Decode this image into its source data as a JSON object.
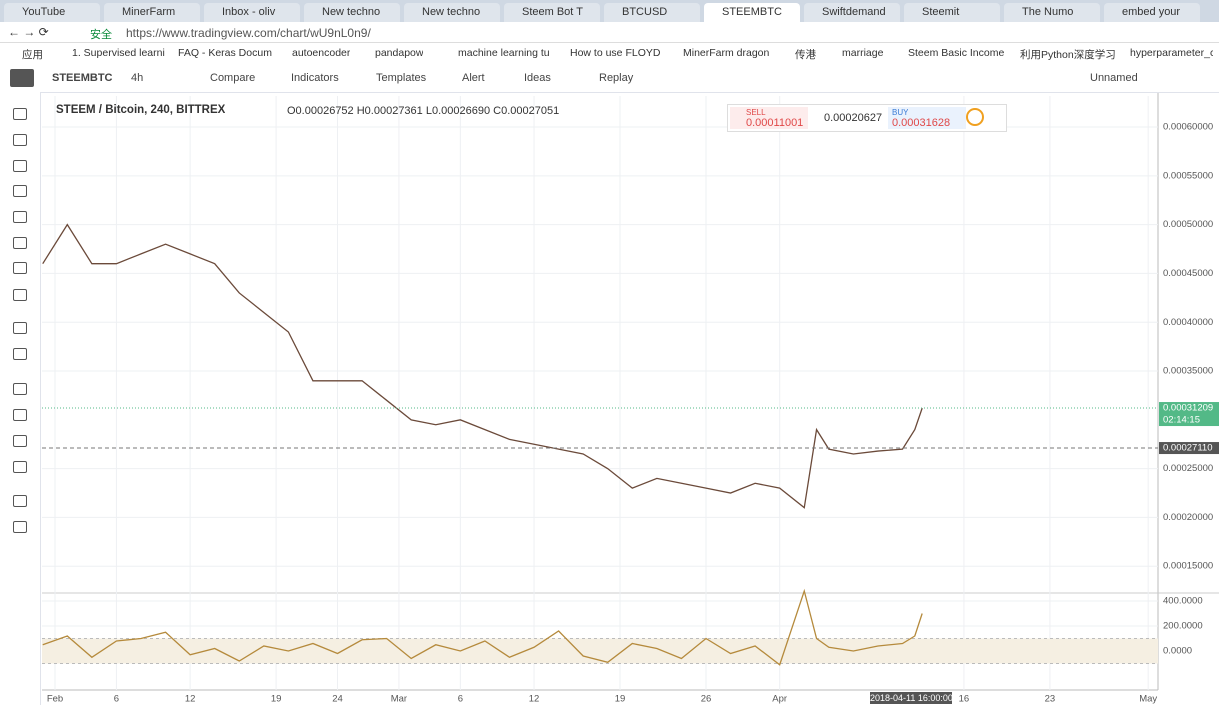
{
  "browser": {
    "tabs": [
      "YouTube",
      "MinerFarm",
      "Inbox - oliv",
      "New techno",
      "New techno",
      "Steem Bot T",
      "BTCUSD",
      "STEEMBTC",
      "Swiftdemand",
      "Steemit",
      "The Numo",
      "embed your"
    ],
    "security": "安全",
    "url": "https://www.tradingview.com/chart/wU9nL0n9/",
    "bookmarks": [
      "应用",
      "1. Supervised learni",
      "FAQ - Keras Docum",
      "autoencoder",
      "pandapow",
      "machine learning tu",
      "How to use FLOYD",
      "MinerFarm dragon",
      "传港",
      "marriage",
      "Steem Basic Income",
      "利用Python深度学习",
      "hyperparameter_c"
    ]
  },
  "toolbar": {
    "symbol": "STEEMBTC",
    "interval": "4h",
    "buttons": [
      "Compare",
      "Indicators",
      "Templates",
      "Alert",
      "Ideas",
      "Replay"
    ],
    "layout": "Unnamed"
  },
  "legend": {
    "title": "STEEM / Bitcoin, 240, BITTREX",
    "ohlc": "O0.00026752 H0.00027361 L0.00026690 C0.00027051"
  },
  "trade": {
    "sell_label": "SELL",
    "sell": "0.00011001",
    "spread": "0.00020627",
    "buy_label": "BUY",
    "buy": "0.00031628"
  },
  "crosshair_label": "2018-04-11 16:00:00",
  "chart_data": [
    {
      "type": "line",
      "color": "#6b4a3a",
      "x": [
        0,
        2,
        4,
        6,
        8,
        10,
        12,
        14,
        16,
        18,
        20,
        22,
        24,
        26,
        28,
        30,
        32,
        34,
        36,
        38,
        40,
        42,
        44,
        46,
        48,
        50,
        52,
        54,
        56,
        58,
        60,
        62,
        63,
        64,
        66,
        68,
        70,
        71,
        71.6
      ],
      "values": [
        0.00046,
        0.0005,
        0.00046,
        0.00046,
        0.00047,
        0.00048,
        0.00047,
        0.00046,
        0.00043,
        0.00041,
        0.00039,
        0.00034,
        0.00034,
        0.00034,
        0.00032,
        0.0003,
        0.000295,
        0.0003,
        0.00029,
        0.00028,
        0.000275,
        0.00027,
        0.000265,
        0.00025,
        0.00023,
        0.00024,
        0.000235,
        0.00023,
        0.000225,
        0.000235,
        0.00023,
        0.00021,
        0.00029,
        0.00027,
        0.000265,
        0.000268,
        0.00027,
        0.00029,
        0.000312
      ],
      "xlim": [
        -0.06,
        90.8
      ],
      "xticks": [
        {
          "value": 1,
          "label": "Feb"
        },
        6,
        12,
        19,
        24,
        {
          "value": 29,
          "label": "Mar"
        },
        {
          "value": 34,
          "label": "6"
        },
        {
          "value": 40,
          "label": "12"
        },
        {
          "value": 47,
          "label": "19"
        },
        {
          "value": 54,
          "label": "26"
        },
        {
          "value": 60,
          "label": "Apr"
        },
        {
          "value": 75,
          "label": "16"
        },
        {
          "value": 82,
          "label": "23"
        },
        {
          "value": 90,
          "label": "May"
        }
      ],
      "ylim": [
        0.0001236,
        0.0006318
      ],
      "yticks": [
        {
          "value": 0.0006,
          "label": "0.00060000"
        },
        {
          "value": 0.00055,
          "label": "0.00055000"
        },
        {
          "value": 0.0005,
          "label": "0.00050000"
        },
        {
          "value": 0.00045,
          "label": "0.00045000"
        },
        {
          "value": 0.0004,
          "label": "0.00040000"
        },
        {
          "value": 0.00035,
          "label": "0.00035000"
        },
        {
          "value": 0.00025,
          "label": "0.00025000"
        },
        {
          "value": 0.0002,
          "label": "0.00020000"
        },
        {
          "value": 0.00015,
          "label": "0.00015000"
        }
      ],
      "grid": true,
      "last_price": {
        "value": 0.00031209,
        "label": "0.00031209"
      },
      "countdown": "02:14:15",
      "reference_line": {
        "value": 0.0002711,
        "label": "0.00027110"
      }
    },
    {
      "type": "line",
      "color": "#b58a3c",
      "x": [
        0,
        2,
        4,
        6,
        8,
        10,
        12,
        14,
        16,
        18,
        20,
        22,
        24,
        26,
        28,
        30,
        32,
        34,
        36,
        38,
        40,
        42,
        44,
        46,
        48,
        50,
        52,
        54,
        56,
        58,
        60,
        62,
        63,
        64,
        66,
        68,
        70,
        71,
        71.6
      ],
      "values": [
        50,
        120,
        -50,
        80,
        100,
        150,
        -30,
        20,
        -80,
        40,
        0,
        60,
        -20,
        90,
        100,
        -60,
        50,
        0,
        80,
        -50,
        30,
        160,
        -40,
        -90,
        60,
        20,
        -60,
        100,
        -20,
        40,
        -110,
        480,
        100,
        30,
        0,
        40,
        60,
        120,
        300
      ],
      "ylim": [
        -296,
        448
      ],
      "yticks": [
        {
          "value": 400,
          "label": "400.0000"
        },
        {
          "value": 200,
          "label": "200.0000"
        },
        {
          "value": 0,
          "label": "0.0000"
        }
      ],
      "band": [
        -100,
        100
      ]
    }
  ]
}
